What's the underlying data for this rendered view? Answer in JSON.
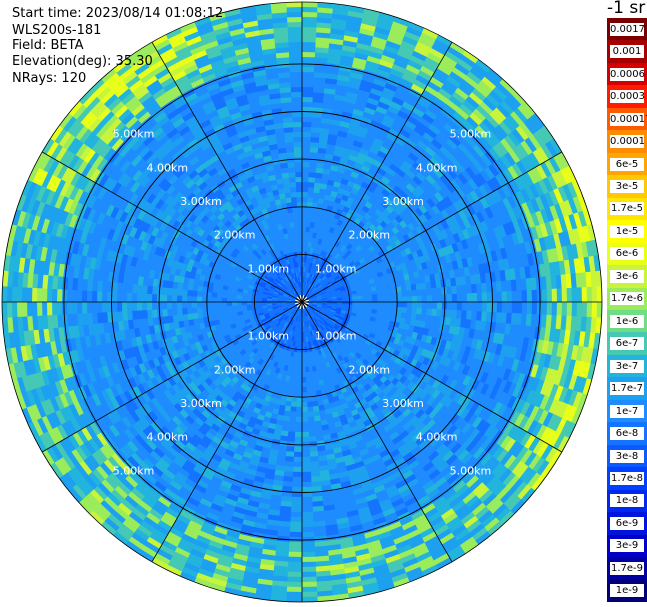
{
  "info": {
    "start_time": "Start time: 2023/08/14 01:08:12",
    "instrument": "WLS200s-181",
    "field": "Field: BETA",
    "elevation": "Elevation(deg): 35.30",
    "nrays": "NRays: 120"
  },
  "colorbar": {
    "unit_label": "-1 sr",
    "levels": [
      {
        "label": "0.0017",
        "color": "#7a0000"
      },
      {
        "label": "0.001",
        "color": "#a60000"
      },
      {
        "label": "0.0006",
        "color": "#d40000"
      },
      {
        "label": "0.0003",
        "color": "#ff1a00"
      },
      {
        "label": "0.00017",
        "color": "#ff5a00"
      },
      {
        "label": "0.0001",
        "color": "#ff8c00"
      },
      {
        "label": "6e-5",
        "color": "#ffa500"
      },
      {
        "label": "3e-5",
        "color": "#ffc800"
      },
      {
        "label": "1.7e-5",
        "color": "#ffe600"
      },
      {
        "label": "1e-5",
        "color": "#ffff00"
      },
      {
        "label": "6e-6",
        "color": "#e8ff1a"
      },
      {
        "label": "3e-6",
        "color": "#c8f53c"
      },
      {
        "label": "1.7e-6",
        "color": "#9bec5a"
      },
      {
        "label": "1e-6",
        "color": "#6fdc86"
      },
      {
        "label": "6e-7",
        "color": "#45c8b4"
      },
      {
        "label": "3e-7",
        "color": "#22b4dc"
      },
      {
        "label": "1.7e-7",
        "color": "#1ea0f0"
      },
      {
        "label": "1e-7",
        "color": "#1e8cff"
      },
      {
        "label": "6e-8",
        "color": "#1473ff"
      },
      {
        "label": "3e-8",
        "color": "#0a5aff"
      },
      {
        "label": "1.7e-8",
        "color": "#0040ff"
      },
      {
        "label": "1e-8",
        "color": "#0028f0"
      },
      {
        "label": "6e-9",
        "color": "#0014dc"
      },
      {
        "label": "3e-9",
        "color": "#0000c8"
      },
      {
        "label": "1.7e-9",
        "color": "#0000a0"
      },
      {
        "label": "1e-9",
        "color": "#000078"
      }
    ]
  },
  "chart_data": {
    "type": "heatmap",
    "projection": "polar (PPI)",
    "field": "BETA",
    "range_rings_km": [
      1,
      2,
      3,
      4,
      5
    ],
    "ring_labels": [
      "1.00km",
      "2.00km",
      "3.00km",
      "4.00km",
      "5.00km"
    ],
    "radial_spokes_deg": [
      0,
      30,
      60,
      90,
      120,
      150,
      180,
      210,
      240,
      270,
      300,
      330
    ],
    "max_range_km": 6.3,
    "color_scale": "log",
    "value_range": [
      1e-09,
      0.0017
    ],
    "dominant_level_by_range": [
      {
        "range_km": "0-1",
        "level": "6e-8"
      },
      {
        "range_km": "1-2",
        "level": "1e-7"
      },
      {
        "range_km": "2-5",
        "level": "1e-7 to 3e-7"
      },
      {
        "range_km": "5-6.3",
        "level": "3e-7 to 6e-6"
      }
    ],
    "grid": true
  }
}
